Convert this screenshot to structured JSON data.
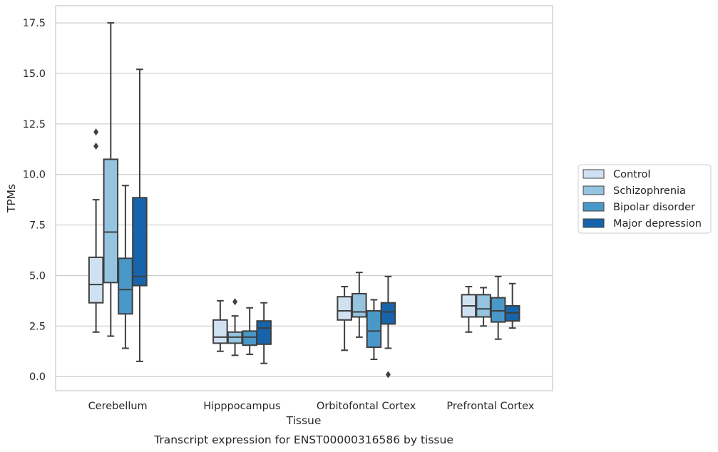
{
  "chart_data": {
    "type": "box",
    "title": "",
    "caption": "Transcript expression for ENST00000316586 by tissue",
    "xlabel": "Tissue",
    "ylabel": "TPMs",
    "ylim": [
      -0.7,
      18.35
    ],
    "yticks": [
      "0.0",
      "2.5",
      "5.0",
      "7.5",
      "10.0",
      "12.5",
      "15.0",
      "17.5"
    ],
    "ytick_values": [
      0,
      2.5,
      5,
      7.5,
      10,
      12.5,
      15,
      17.5
    ],
    "grid": "horizontal",
    "legend_position": "right",
    "categories": [
      "Cerebellum",
      "Hipppocampus",
      "Orbitofontal Cortex",
      "Prefrontal Cortex"
    ],
    "series": [
      {
        "name": "Control",
        "color": "#d0e1f2",
        "boxes": [
          {
            "whisker_low": 2.2,
            "q1": 3.65,
            "median": 4.55,
            "q3": 5.9,
            "whisker_high": 8.75,
            "outliers": [
              11.4,
              12.1
            ]
          },
          {
            "whisker_low": 1.25,
            "q1": 1.65,
            "median": 1.95,
            "q3": 2.8,
            "whisker_high": 3.75,
            "outliers": []
          },
          {
            "whisker_low": 1.3,
            "q1": 2.8,
            "median": 3.25,
            "q3": 3.95,
            "whisker_high": 4.45,
            "outliers": []
          },
          {
            "whisker_low": 2.2,
            "q1": 2.95,
            "median": 3.5,
            "q3": 4.05,
            "whisker_high": 4.45,
            "outliers": []
          }
        ]
      },
      {
        "name": "Schizophrenia",
        "color": "#94c4df",
        "boxes": [
          {
            "whisker_low": 2.0,
            "q1": 4.65,
            "median": 7.15,
            "q3": 10.75,
            "whisker_high": 17.5,
            "outliers": []
          },
          {
            "whisker_low": 1.05,
            "q1": 1.65,
            "median": 1.95,
            "q3": 2.2,
            "whisker_high": 3.0,
            "outliers": [
              3.7
            ]
          },
          {
            "whisker_low": 1.95,
            "q1": 2.95,
            "median": 3.2,
            "q3": 4.1,
            "whisker_high": 5.15,
            "outliers": []
          },
          {
            "whisker_low": 2.5,
            "q1": 2.95,
            "median": 3.35,
            "q3": 4.05,
            "whisker_high": 4.4,
            "outliers": []
          }
        ]
      },
      {
        "name": "Bipolar disorder",
        "color": "#4a98c9",
        "boxes": [
          {
            "whisker_low": 1.4,
            "q1": 3.1,
            "median": 4.3,
            "q3": 5.85,
            "whisker_high": 9.45,
            "outliers": []
          },
          {
            "whisker_low": 1.1,
            "q1": 1.55,
            "median": 1.95,
            "q3": 2.25,
            "whisker_high": 3.4,
            "outliers": []
          },
          {
            "whisker_low": 0.85,
            "q1": 1.45,
            "median": 2.25,
            "q3": 3.25,
            "whisker_high": 3.8,
            "outliers": []
          },
          {
            "whisker_low": 1.85,
            "q1": 2.7,
            "median": 3.25,
            "q3": 3.9,
            "whisker_high": 4.95,
            "outliers": []
          }
        ]
      },
      {
        "name": "Major depression",
        "color": "#1764ab",
        "boxes": [
          {
            "whisker_low": 0.75,
            "q1": 4.5,
            "median": 4.95,
            "q3": 8.85,
            "whisker_high": 15.2,
            "outliers": []
          },
          {
            "whisker_low": 0.65,
            "q1": 1.6,
            "median": 2.4,
            "q3": 2.75,
            "whisker_high": 3.65,
            "outliers": []
          },
          {
            "whisker_low": 1.4,
            "q1": 2.6,
            "median": 3.2,
            "q3": 3.65,
            "whisker_high": 4.95,
            "outliers": [
              0.1
            ]
          },
          {
            "whisker_low": 2.4,
            "q1": 2.75,
            "median": 3.15,
            "q3": 3.5,
            "whisker_high": 4.6,
            "outliers": []
          }
        ]
      }
    ]
  }
}
